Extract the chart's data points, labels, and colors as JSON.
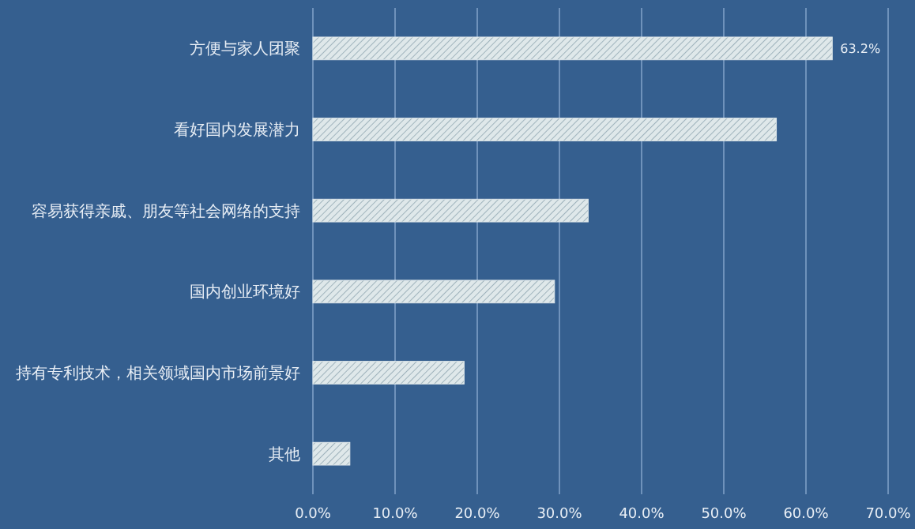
{
  "chart_data": {
    "type": "bar",
    "orientation": "horizontal",
    "categories": [
      "方便与家人团聚",
      "看好国内发展潜力",
      "容易获得亲戚、朋友等社会网络的支持",
      "国内创业环境好",
      "持有专利技术，相关领域国内市场前景好",
      "其他"
    ],
    "values": [
      63.2,
      56.4,
      33.5,
      29.4,
      18.4,
      4.5
    ],
    "value_labels": [
      "63.2%",
      null,
      null,
      null,
      null,
      null
    ],
    "color": "#dfe8ea",
    "xlim": [
      0,
      70
    ],
    "xticks": [
      {
        "value": 0,
        "label": "0.0%"
      },
      {
        "value": 10,
        "label": "10.0%"
      },
      {
        "value": 20,
        "label": "20.0%"
      },
      {
        "value": 30,
        "label": "30.0%"
      },
      {
        "value": 40,
        "label": "40.0%"
      },
      {
        "value": 50,
        "label": "50.0%"
      },
      {
        "value": 60,
        "label": "60.0%"
      },
      {
        "value": 70,
        "label": "70.0%"
      }
    ],
    "grid": "x"
  }
}
